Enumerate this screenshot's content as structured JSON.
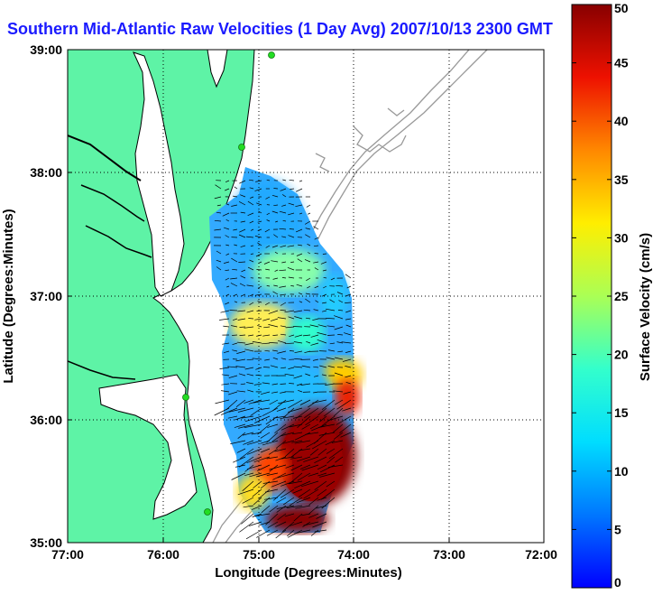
{
  "title": "Southern Mid-Atlantic Raw Velocities (1 Day Avg) 2007/10/13 2300 GMT",
  "map": {
    "x_axis": {
      "label": "Longitude (Degrees:Minutes)",
      "ticks": [
        "77:00",
        "76:00",
        "75:00",
        "74:00",
        "73:00",
        "72:00"
      ]
    },
    "y_axis": {
      "label": "Latitude (Degrees:Minutes)",
      "ticks": [
        "39:00",
        "38:00",
        "37:00",
        "36:00",
        "35:00"
      ]
    },
    "grid": "dotted",
    "land_color": "#5ef3a6",
    "coast_color": "#000000",
    "bathymetry_color": "#999999",
    "station_color": "#22dd22"
  },
  "colorbar": {
    "label": "Surface Velocity (cm/s)",
    "min": 0,
    "max": 50,
    "ticks": [
      "0",
      "5",
      "10",
      "15",
      "20",
      "25",
      "30",
      "35",
      "40",
      "45",
      "50"
    ],
    "colormap": "jet"
  }
}
